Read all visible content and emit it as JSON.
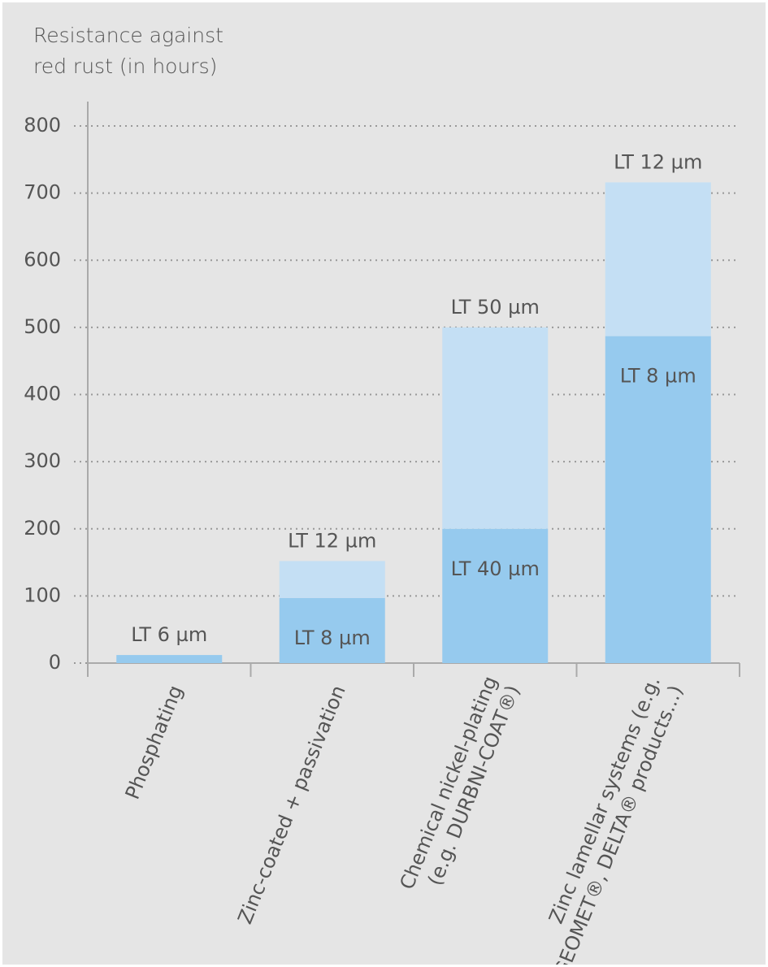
{
  "chart_data": {
    "type": "stacked-bar",
    "y_label": "Resistance against red rust (in hours)",
    "categories": [
      [
        "Phosphating"
      ],
      [
        "Zinc-coated + passivation"
      ],
      [
        "Chemical nickel-plating",
        "(e.g. DURBNI-COAT®)"
      ],
      [
        "Zinc lamellar systems (e.g.",
        "GEOMET®, DELTA® products...)"
      ]
    ],
    "series": [
      {
        "color": "#96caee",
        "values": [
          12,
          97,
          200,
          487
        ],
        "labels": [
          "LT 6 µm",
          "LT 8 µm",
          "LT 40 µm",
          "LT 8 µm"
        ]
      },
      {
        "color": "#c4dff4",
        "values": [
          null,
          55,
          300,
          229
        ],
        "labels": [
          null,
          "LT 12 µm",
          "LT 50 µm",
          "LT 12 µm"
        ]
      }
    ],
    "ylim": [
      0,
      800
    ],
    "yticks": [
      0,
      100,
      200,
      300,
      400,
      500,
      600,
      700,
      800
    ],
    "grid": true
  }
}
